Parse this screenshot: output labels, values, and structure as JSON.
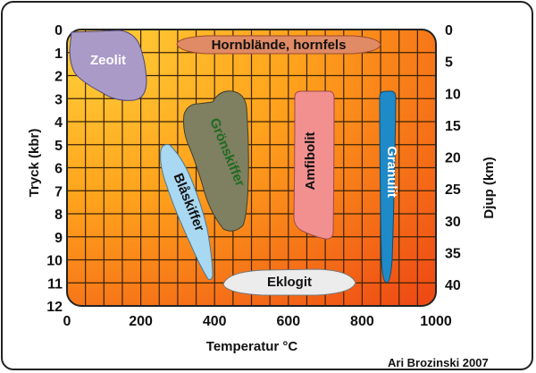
{
  "chart_data": {
    "type": "diagram",
    "xlabel": "Temperatur °C",
    "ylabel_left": "Tryck (kbr)",
    "ylabel_right": "Djup (km)",
    "x_ticks": [
      "0",
      "200",
      "400",
      "600",
      "800",
      "1000"
    ],
    "y_ticks_left": [
      "0",
      "1",
      "2",
      "3",
      "4",
      "5",
      "6",
      "7",
      "8",
      "9",
      "10",
      "11",
      "12"
    ],
    "y_ticks_right": [
      "0",
      "5",
      "10",
      "15",
      "20",
      "25",
      "30",
      "35",
      "40"
    ],
    "xlim": [
      0,
      1000
    ],
    "ylim_pressure": [
      0,
      12
    ],
    "facies": [
      {
        "name": "Zeolit",
        "color": "#a99ac8",
        "text_color": "#ffffff"
      },
      {
        "name": "Hornblände, hornfels",
        "color": "#e08a66",
        "text_color": "#111111"
      },
      {
        "name": "Grönskiffer",
        "color": "#7f7f62",
        "text_color": "#1f6b1f"
      },
      {
        "name": "Blåskiffer",
        "color": "#a9d8f2",
        "text_color": "#111111"
      },
      {
        "name": "Amfibolit",
        "color": "#f29090",
        "text_color": "#111111"
      },
      {
        "name": "Granulit",
        "color": "#1f8ac8",
        "text_color": "#ffffff"
      },
      {
        "name": "Eklogit",
        "color": "#ececec",
        "text_color": "#111111"
      }
    ]
  },
  "credit": "Ari Brozinski 2007"
}
